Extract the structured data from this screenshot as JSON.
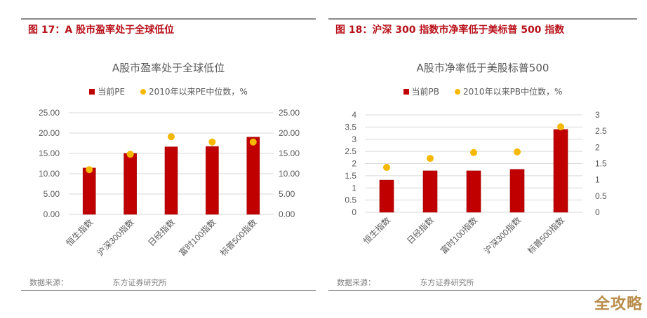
{
  "figures": [
    {
      "fig_title": "图 17：A 股市盈率处于全球低位",
      "chart_title": "A股市盈率处于全球低位",
      "legend": {
        "bar": "当前PE",
        "dot": "2010年以来PE中位数，%"
      },
      "source_label": "数据来源：",
      "source_org": "东方证券研究所"
    },
    {
      "fig_title": "图 18：沪深 300 指数市净率低于美标普 500 指数",
      "chart_title": "A股市净率低于美股标普500",
      "legend": {
        "bar": "当前PB",
        "dot": "2010年以来PB中位数，%"
      },
      "source_label": "数据来源：",
      "source_org": "东方证券研究所"
    }
  ],
  "watermark": "全攻略",
  "colors": {
    "bar": "#c00000",
    "dot": "#f5b800",
    "title_red": "#b8121b",
    "grid": "#d9d9d9",
    "axis_text": "#595959"
  },
  "chart_data": [
    {
      "type": "bar",
      "title": "A股市盈率处于全球低位",
      "categories": [
        "恒生指数",
        "沪深300指数",
        "日经指数",
        "富时100指数",
        "标普500指数"
      ],
      "series": [
        {
          "name": "当前PE",
          "type": "bar",
          "axis": "left",
          "values": [
            11.4,
            15.0,
            16.6,
            16.7,
            19.0
          ]
        },
        {
          "name": "2010年以来PE中位数，%",
          "type": "scatter",
          "axis": "right",
          "values": [
            11.0,
            14.8,
            19.1,
            17.8,
            17.8
          ]
        }
      ],
      "y_left": {
        "ticks": [
          "0.00",
          "5.00",
          "10.00",
          "15.00",
          "20.00",
          "25.00"
        ],
        "min": 0,
        "max": 25
      },
      "y_right": {
        "ticks": [
          "0.00",
          "5.00",
          "10.00",
          "15.00",
          "20.00",
          "25.00"
        ],
        "min": 0,
        "max": 25
      },
      "xlabel": "",
      "ylabel": "",
      "grid": true,
      "legend_position": "top"
    },
    {
      "type": "bar",
      "title": "A股市净率低于美股标普500",
      "categories": [
        "恒生指数",
        "日经指数",
        "富时100指数",
        "沪深300指数",
        "标普500指数"
      ],
      "series": [
        {
          "name": "当前PB",
          "type": "bar",
          "axis": "left",
          "values": [
            1.32,
            1.7,
            1.7,
            1.76,
            3.4
          ]
        },
        {
          "name": "2010年以来PB中位数，%",
          "type": "scatter",
          "axis": "right",
          "values": [
            1.38,
            1.66,
            1.84,
            1.86,
            2.63
          ]
        }
      ],
      "y_left": {
        "ticks": [
          "0",
          "0.5",
          "1",
          "1.5",
          "2",
          "2.5",
          "3",
          "3.5",
          "4"
        ],
        "min": 0,
        "max": 4
      },
      "y_right": {
        "ticks": [
          "0",
          "0.5",
          "1",
          "1.5",
          "2",
          "2.5",
          "3"
        ],
        "min": 0,
        "max": 3
      },
      "xlabel": "",
      "ylabel": "",
      "grid": true,
      "legend_position": "top"
    }
  ]
}
